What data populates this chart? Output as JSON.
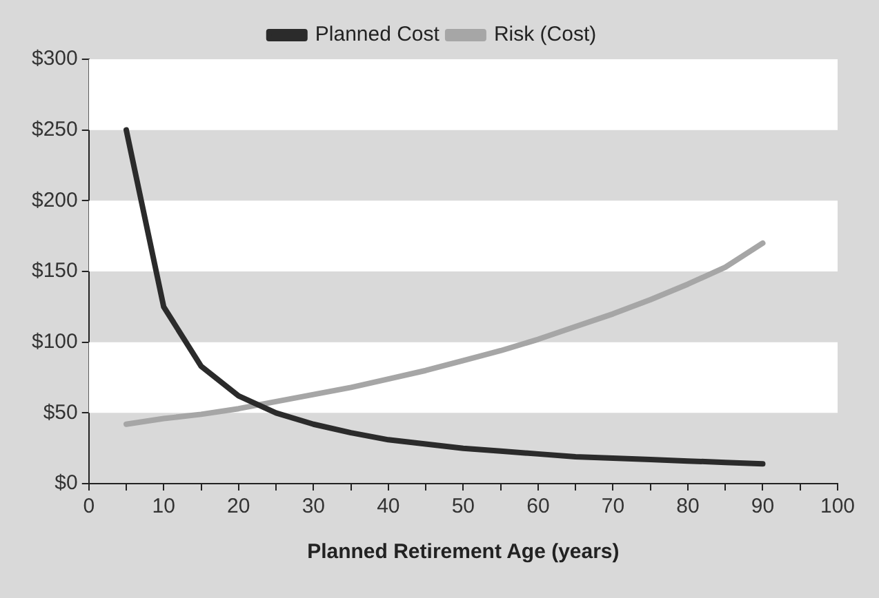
{
  "chart_data": {
    "type": "line",
    "xlabel": "Planned Retirement Age (years)",
    "x": [
      5,
      10,
      15,
      20,
      25,
      30,
      35,
      40,
      45,
      50,
      55,
      60,
      65,
      70,
      75,
      80,
      85,
      90
    ],
    "series": [
      {
        "name": "Planned Cost",
        "color": "#2b2b2b",
        "values": [
          250,
          125,
          83,
          62,
          50,
          42,
          36,
          31,
          28,
          25,
          23,
          21,
          19,
          18,
          17,
          16,
          15,
          14
        ]
      },
      {
        "name": "Risk (Cost)",
        "color": "#a6a6a6",
        "values": [
          42,
          46,
          49,
          53,
          58,
          63,
          68,
          74,
          80,
          87,
          94,
          102,
          111,
          120,
          130,
          141,
          153,
          170
        ]
      }
    ],
    "xlim": [
      0,
      100
    ],
    "xticks": [
      0,
      {
        "value": 5,
        "label": null
      },
      10,
      {
        "value": 15,
        "label": null
      },
      20,
      {
        "value": 25,
        "label": null
      },
      30,
      {
        "value": 35,
        "label": null
      },
      40,
      {
        "value": 45,
        "label": null
      },
      50,
      {
        "value": 55,
        "label": null
      },
      60,
      {
        "value": 65,
        "label": null
      },
      70,
      {
        "value": 75,
        "label": null
      },
      80,
      {
        "value": 85,
        "label": null
      },
      90,
      {
        "value": 95,
        "label": null
      },
      100
    ],
    "ylim": [
      0,
      300
    ],
    "yticks": [
      {
        "value": 0,
        "label": "$0"
      },
      {
        "value": 50,
        "label": "$50"
      },
      {
        "value": 100,
        "label": "$100"
      },
      {
        "value": 150,
        "label": "$150"
      },
      {
        "value": 200,
        "label": "$200"
      },
      {
        "value": 250,
        "label": "$250"
      },
      {
        "value": 300,
        "label": "$300"
      }
    ],
    "bands": [
      {
        "axis": "y",
        "from": 50,
        "to": 100,
        "color": "#ffffff"
      },
      {
        "axis": "y",
        "from": 150,
        "to": 200,
        "color": "#ffffff"
      },
      {
        "axis": "y",
        "from": 250,
        "to": 300,
        "color": "#ffffff"
      }
    ],
    "legend": "top",
    "marker": "none",
    "line_style": "solid"
  }
}
